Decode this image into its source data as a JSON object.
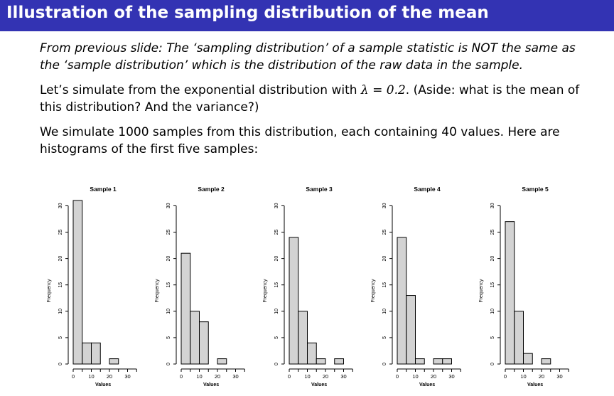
{
  "slide": {
    "title": "Illustration of the sampling distribution of the mean",
    "para1": "From previous slide: The ‘sampling distribution’ of a sample statistic is NOT the same as the ‘sample distribution’ which is the distribution of the raw data in the sample.",
    "para2_pre": "Let’s simulate from the exponential distribution with ",
    "para2_lambda": "λ = 0.2",
    "para2_post": ". (Aside: what is the mean of this distribution? And the variance?)",
    "para3": "We simulate 1000 samples from this distribution, each containing 40 values. Here are histograms of the first five samples:"
  },
  "colors": {
    "title_bar": "#3333b3",
    "bar_fill": "#d3d3d3"
  },
  "chart_data": [
    {
      "type": "bar",
      "title": "Sample 1",
      "xlabel": "Values",
      "ylabel": "Frequency",
      "bins": [
        [
          0,
          5
        ],
        [
          5,
          10
        ],
        [
          10,
          15
        ],
        [
          15,
          20
        ],
        [
          20,
          25
        ],
        [
          25,
          30
        ]
      ],
      "values": [
        31,
        4,
        4,
        0,
        1,
        0
      ],
      "xticks": [
        0,
        10,
        20,
        30
      ],
      "yticks": [
        0,
        5,
        10,
        15,
        20,
        25,
        30
      ],
      "xlim": [
        0,
        35
      ],
      "ylim": [
        0,
        31
      ]
    },
    {
      "type": "bar",
      "title": "Sample 2",
      "xlabel": "Values",
      "ylabel": "Frequency",
      "bins": [
        [
          0,
          5
        ],
        [
          5,
          10
        ],
        [
          10,
          15
        ],
        [
          15,
          20
        ],
        [
          20,
          25
        ],
        [
          25,
          30
        ]
      ],
      "values": [
        21,
        10,
        8,
        0,
        1,
        0
      ],
      "xticks": [
        0,
        10,
        20,
        30
      ],
      "yticks": [
        0,
        5,
        10,
        15,
        20,
        25,
        30
      ],
      "xlim": [
        0,
        35
      ],
      "ylim": [
        0,
        31
      ]
    },
    {
      "type": "bar",
      "title": "Sample 3",
      "xlabel": "Values",
      "ylabel": "Frequency",
      "bins": [
        [
          0,
          5
        ],
        [
          5,
          10
        ],
        [
          10,
          15
        ],
        [
          15,
          20
        ],
        [
          20,
          25
        ],
        [
          25,
          30
        ]
      ],
      "values": [
        24,
        10,
        4,
        1,
        0,
        1
      ],
      "xticks": [
        0,
        10,
        20,
        30
      ],
      "yticks": [
        0,
        5,
        10,
        15,
        20,
        25,
        30
      ],
      "xlim": [
        0,
        35
      ],
      "ylim": [
        0,
        31
      ]
    },
    {
      "type": "bar",
      "title": "Sample 4",
      "xlabel": "Values",
      "ylabel": "Frequency",
      "bins": [
        [
          0,
          5
        ],
        [
          5,
          10
        ],
        [
          10,
          15
        ],
        [
          15,
          20
        ],
        [
          20,
          25
        ],
        [
          25,
          30
        ]
      ],
      "values": [
        24,
        13,
        1,
        0,
        1,
        1
      ],
      "xticks": [
        0,
        10,
        20,
        30
      ],
      "yticks": [
        0,
        5,
        10,
        15,
        20,
        25,
        30
      ],
      "xlim": [
        0,
        35
      ],
      "ylim": [
        0,
        31
      ]
    },
    {
      "type": "bar",
      "title": "Sample 5",
      "xlabel": "Values",
      "ylabel": "Frequency",
      "bins": [
        [
          0,
          5
        ],
        [
          5,
          10
        ],
        [
          10,
          15
        ],
        [
          15,
          20
        ],
        [
          20,
          25
        ],
        [
          25,
          30
        ]
      ],
      "values": [
        27,
        10,
        2,
        0,
        1,
        0
      ],
      "xticks": [
        0,
        10,
        20,
        30
      ],
      "yticks": [
        0,
        5,
        10,
        15,
        20,
        25,
        30
      ],
      "xlim": [
        0,
        35
      ],
      "ylim": [
        0,
        31
      ]
    }
  ]
}
